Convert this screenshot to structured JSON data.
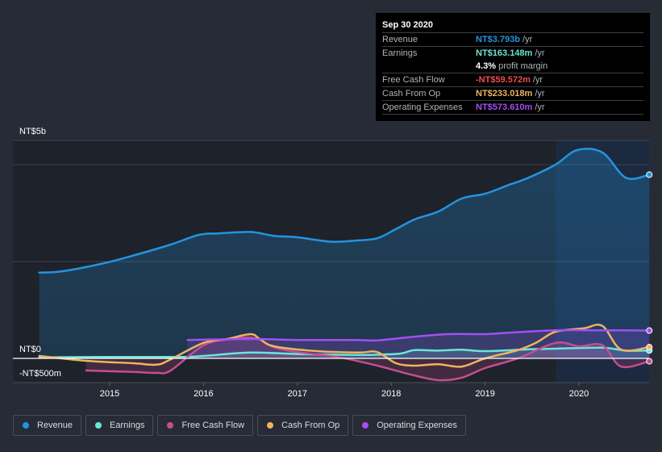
{
  "tooltip": {
    "date": "Sep 30 2020",
    "rows": [
      {
        "label": "Revenue",
        "value": "NT$3.793b",
        "unit": "/yr",
        "color": "#2394df"
      },
      {
        "label": "Earnings",
        "value": "NT$163.148m",
        "unit": "/yr",
        "color": "#6ce5d6"
      },
      {
        "label": "",
        "value": "4.3%",
        "unit": "profit margin",
        "color": "#ffffff"
      },
      {
        "label": "Free Cash Flow",
        "value": "-NT$59.572m",
        "unit": "/yr",
        "color": "#ee4d4d"
      },
      {
        "label": "Cash From Op",
        "value": "NT$233.018m",
        "unit": "/yr",
        "color": "#efb35f"
      },
      {
        "label": "Operating Expenses",
        "value": "NT$573.610m",
        "unit": "/yr",
        "color": "#a34ff2"
      }
    ]
  },
  "legend": [
    {
      "label": "Revenue",
      "color": "#2394df"
    },
    {
      "label": "Earnings",
      "color": "#6ce5d6"
    },
    {
      "label": "Free Cash Flow",
      "color": "#c44e8f"
    },
    {
      "label": "Cash From Op",
      "color": "#efb35f"
    },
    {
      "label": "Operating Expenses",
      "color": "#a34ff2"
    }
  ],
  "chart_data": {
    "type": "area",
    "title": "",
    "xlabel": "",
    "ylabel": "",
    "y_unit": "NT$ billions",
    "ylim": [
      -0.5,
      4.5
    ],
    "y_tick_labels": [
      {
        "value": 4.5,
        "label": "NT$5b"
      },
      {
        "value": 0,
        "label": "NT$0"
      },
      {
        "value": -0.5,
        "label": "-NT$500m"
      }
    ],
    "gridlines": [
      4.0,
      2.0
    ],
    "x_range": [
      2014.1,
      2020.75
    ],
    "x_ticks": [
      2015,
      2016,
      2017,
      2018,
      2019,
      2020
    ],
    "x_tick_labels": [
      "2015",
      "2016",
      "2017",
      "2018",
      "2019",
      "2020"
    ],
    "highlight_from": 2019.75,
    "grid": true,
    "legend_position": "bottom",
    "series": [
      {
        "name": "Revenue",
        "color": "#2394df",
        "fill": true,
        "points": [
          [
            2014.25,
            1.77
          ],
          [
            2014.5,
            1.8
          ],
          [
            2014.95,
            1.97
          ],
          [
            2015.3,
            2.15
          ],
          [
            2015.65,
            2.35
          ],
          [
            2015.95,
            2.55
          ],
          [
            2016.15,
            2.58
          ],
          [
            2016.5,
            2.61
          ],
          [
            2016.75,
            2.53
          ],
          [
            2017.0,
            2.5
          ],
          [
            2017.35,
            2.41
          ],
          [
            2017.6,
            2.43
          ],
          [
            2017.85,
            2.48
          ],
          [
            2018.05,
            2.67
          ],
          [
            2018.25,
            2.87
          ],
          [
            2018.5,
            3.03
          ],
          [
            2018.75,
            3.3
          ],
          [
            2019.0,
            3.4
          ],
          [
            2019.25,
            3.58
          ],
          [
            2019.45,
            3.72
          ],
          [
            2019.75,
            4.0
          ],
          [
            2019.98,
            4.3
          ],
          [
            2020.25,
            4.25
          ],
          [
            2020.5,
            3.73
          ],
          [
            2020.75,
            3.793
          ]
        ]
      },
      {
        "name": "Earnings",
        "color": "#6ce5d6",
        "fill": true,
        "points": [
          [
            2014.25,
            0.02
          ],
          [
            2015.0,
            0.03
          ],
          [
            2015.75,
            0.03
          ],
          [
            2016.0,
            0.05
          ],
          [
            2016.5,
            0.12
          ],
          [
            2017.0,
            0.09
          ],
          [
            2017.6,
            0.07
          ],
          [
            2017.9,
            0.08
          ],
          [
            2018.1,
            0.1
          ],
          [
            2018.25,
            0.17
          ],
          [
            2018.5,
            0.16
          ],
          [
            2018.75,
            0.18
          ],
          [
            2019.0,
            0.15
          ],
          [
            2019.5,
            0.19
          ],
          [
            2019.75,
            0.2
          ],
          [
            2020.25,
            0.22
          ],
          [
            2020.5,
            0.16
          ],
          [
            2020.75,
            0.163
          ]
        ]
      },
      {
        "name": "Free Cash Flow",
        "color": "#c44e8f",
        "fill": true,
        "points": [
          [
            2014.75,
            -0.25
          ],
          [
            2015.25,
            -0.28
          ],
          [
            2015.5,
            -0.3
          ],
          [
            2015.65,
            -0.25
          ],
          [
            2016.0,
            0.27
          ],
          [
            2016.3,
            0.4
          ],
          [
            2016.55,
            0.42
          ],
          [
            2016.75,
            0.23
          ],
          [
            2017.0,
            0.13
          ],
          [
            2017.45,
            0.02
          ],
          [
            2017.85,
            -0.15
          ],
          [
            2018.2,
            -0.33
          ],
          [
            2018.5,
            -0.45
          ],
          [
            2018.75,
            -0.4
          ],
          [
            2019.0,
            -0.2
          ],
          [
            2019.35,
            0.0
          ],
          [
            2019.75,
            0.32
          ],
          [
            2020.0,
            0.25
          ],
          [
            2020.25,
            0.27
          ],
          [
            2020.45,
            -0.17
          ],
          [
            2020.75,
            -0.06
          ]
        ]
      },
      {
        "name": "Cash From Op",
        "color": "#efb35f",
        "fill": false,
        "points": [
          [
            2014.25,
            0.05
          ],
          [
            2014.75,
            -0.05
          ],
          [
            2015.25,
            -0.1
          ],
          [
            2015.5,
            -0.13
          ],
          [
            2015.65,
            -0.02
          ],
          [
            2016.0,
            0.32
          ],
          [
            2016.25,
            0.4
          ],
          [
            2016.5,
            0.5
          ],
          [
            2016.6,
            0.4
          ],
          [
            2016.75,
            0.25
          ],
          [
            2017.2,
            0.15
          ],
          [
            2017.65,
            0.12
          ],
          [
            2017.85,
            0.13
          ],
          [
            2018.05,
            -0.1
          ],
          [
            2018.25,
            -0.15
          ],
          [
            2018.5,
            -0.12
          ],
          [
            2018.75,
            -0.17
          ],
          [
            2019.0,
            0.0
          ],
          [
            2019.35,
            0.17
          ],
          [
            2019.55,
            0.33
          ],
          [
            2019.75,
            0.55
          ],
          [
            2020.05,
            0.62
          ],
          [
            2020.25,
            0.67
          ],
          [
            2020.45,
            0.18
          ],
          [
            2020.75,
            0.233
          ]
        ]
      },
      {
        "name": "Operating Expenses",
        "color": "#a34ff2",
        "fill": true,
        "points": [
          [
            2015.83,
            0.38
          ],
          [
            2016.5,
            0.4
          ],
          [
            2017.0,
            0.38
          ],
          [
            2017.6,
            0.38
          ],
          [
            2017.85,
            0.37
          ],
          [
            2018.15,
            0.43
          ],
          [
            2018.6,
            0.5
          ],
          [
            2019.0,
            0.5
          ],
          [
            2019.25,
            0.53
          ],
          [
            2019.75,
            0.58
          ],
          [
            2020.25,
            0.58
          ],
          [
            2020.75,
            0.574
          ]
        ]
      }
    ]
  }
}
